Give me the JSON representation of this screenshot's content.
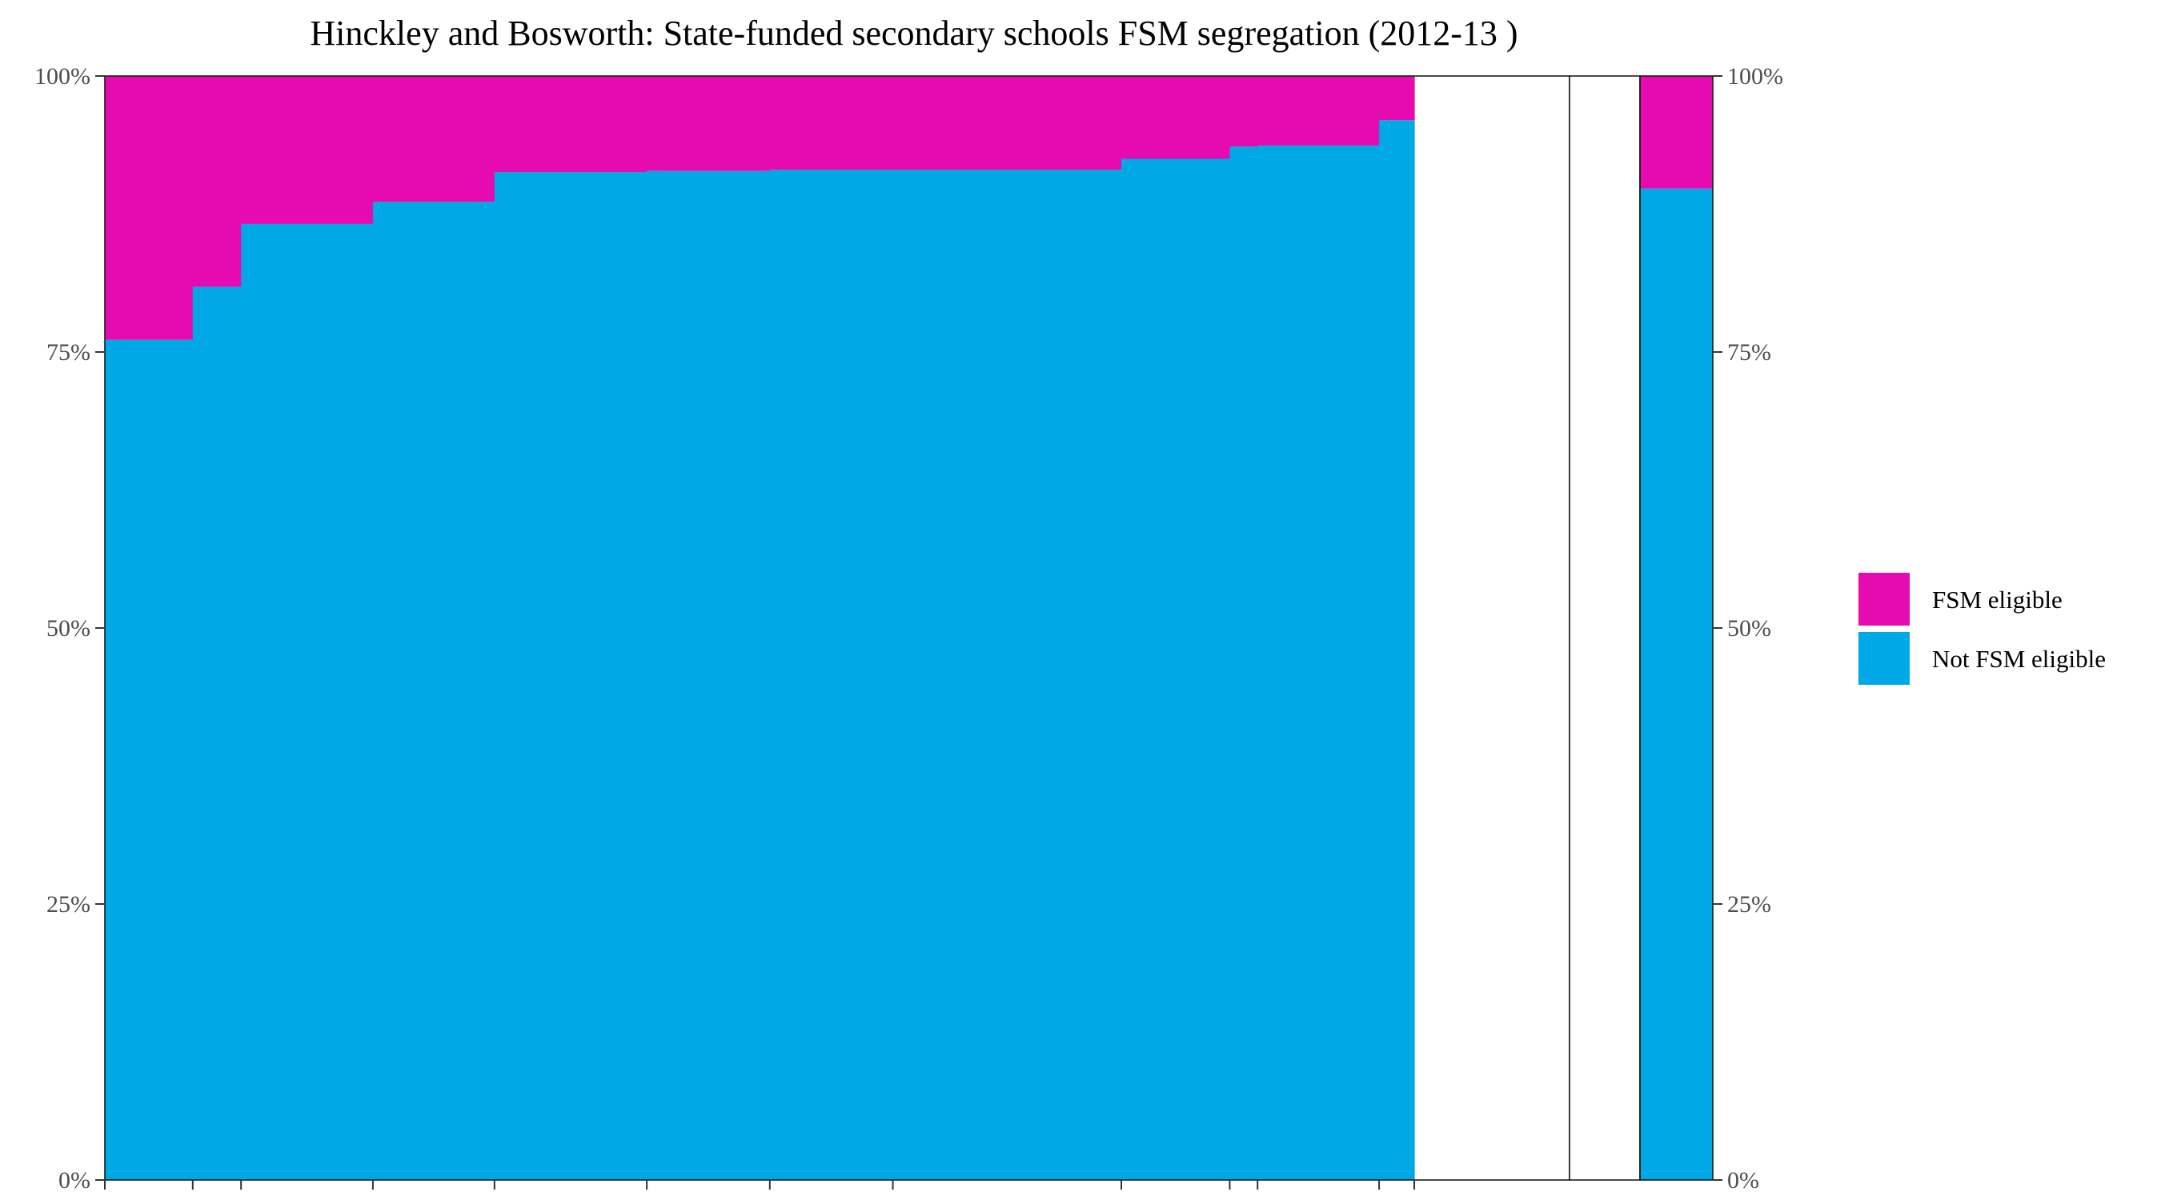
{
  "chart_data": {
    "type": "bar",
    "subtype": "stacked-variable-width-100-percent",
    "title": "Hinckley and Bosworth: State-funded secondary schools FSM segregation (2012-13 )",
    "xlabel": "",
    "ylabel": "",
    "ylim": [
      0,
      1
    ],
    "y_ticks": [
      "0%",
      "25%",
      "50%",
      "75%",
      "100%"
    ],
    "y_tick_values": [
      0,
      0.25,
      0.5,
      0.75,
      1.0
    ],
    "secondary_y_axis": true,
    "grid": false,
    "legend_position": "right",
    "colors": {
      "FSM eligible": "#E60AB1",
      "Not FSM eligible": "#00A8E6"
    },
    "legend": [
      {
        "label": "FSM eligible",
        "color": "#E60AB1"
      },
      {
        "label": "Not FSM eligible",
        "color": "#00A8E6"
      }
    ],
    "x_range": [
      0,
      1000
    ],
    "schools": [
      {
        "x_start": 0,
        "x_end": 60,
        "not_fsm_share": 0.761,
        "fsm_share": 0.239
      },
      {
        "x_start": 60,
        "x_end": 93,
        "not_fsm_share": 0.809,
        "fsm_share": 0.191
      },
      {
        "x_start": 93,
        "x_end": 183,
        "not_fsm_share": 0.866,
        "fsm_share": 0.134
      },
      {
        "x_start": 183,
        "x_end": 266,
        "not_fsm_share": 0.886,
        "fsm_share": 0.114
      },
      {
        "x_start": 266,
        "x_end": 370,
        "not_fsm_share": 0.913,
        "fsm_share": 0.087
      },
      {
        "x_start": 370,
        "x_end": 454,
        "not_fsm_share": 0.914,
        "fsm_share": 0.086
      },
      {
        "x_start": 454,
        "x_end": 538,
        "not_fsm_share": 0.915,
        "fsm_share": 0.085
      },
      {
        "x_start": 538,
        "x_end": 694,
        "not_fsm_share": 0.915,
        "fsm_share": 0.085
      },
      {
        "x_start": 694,
        "x_end": 768,
        "not_fsm_share": 0.925,
        "fsm_share": 0.075
      },
      {
        "x_start": 768,
        "x_end": 787,
        "not_fsm_share": 0.936,
        "fsm_share": 0.064
      },
      {
        "x_start": 787,
        "x_end": 870,
        "not_fsm_share": 0.937,
        "fsm_share": 0.063
      },
      {
        "x_start": 870,
        "x_end": 894,
        "not_fsm_share": 0.96,
        "fsm_share": 0.04
      }
    ],
    "x_tick_positions": [
      0,
      60,
      93,
      183,
      266,
      370,
      454,
      538,
      694,
      768,
      787,
      870,
      894
    ],
    "overall": {
      "not_fsm_share": 0.898,
      "fsm_share": 0.102
    }
  }
}
